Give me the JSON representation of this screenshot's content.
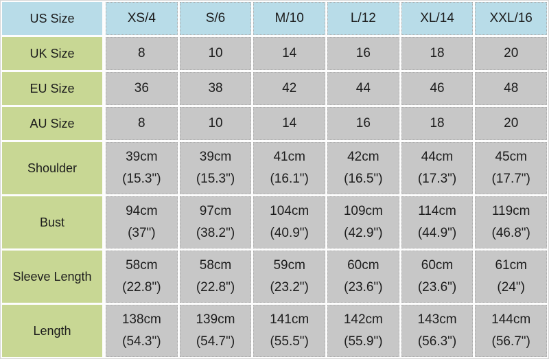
{
  "colors": {
    "header_bg": "#b8dce8",
    "label_bg": "#c8d794",
    "cell_bg": "#c7c7c7",
    "text": "#1c1c1c",
    "gap": "#ffffff"
  },
  "table": {
    "header": {
      "label": "US Size",
      "columns": [
        "XS/4",
        "S/6",
        "M/10",
        "L/12",
        "XL/14",
        "XXL/16"
      ]
    },
    "rows": [
      {
        "label": "UK Size",
        "cells": [
          "8",
          "10",
          "14",
          "16",
          "18",
          "20"
        ]
      },
      {
        "label": "EU Size",
        "cells": [
          "36",
          "38",
          "42",
          "44",
          "46",
          "48"
        ]
      },
      {
        "label": "AU Size",
        "cells": [
          "8",
          "10",
          "14",
          "16",
          "18",
          "20"
        ]
      },
      {
        "label": "Shoulder",
        "cells": [
          {
            "cm": "39cm",
            "in": "(15.3\")"
          },
          {
            "cm": "39cm",
            "in": "(15.3\")"
          },
          {
            "cm": "41cm",
            "in": "(16.1\")"
          },
          {
            "cm": "42cm",
            "in": "(16.5\")"
          },
          {
            "cm": "44cm",
            "in": "(17.3\")"
          },
          {
            "cm": "45cm",
            "in": "(17.7\")"
          }
        ]
      },
      {
        "label": "Bust",
        "cells": [
          {
            "cm": "94cm",
            "in": "(37\")"
          },
          {
            "cm": "97cm",
            "in": "(38.2\")"
          },
          {
            "cm": "104cm",
            "in": "(40.9\")"
          },
          {
            "cm": "109cm",
            "in": "(42.9\")"
          },
          {
            "cm": "114cm",
            "in": "(44.9\")"
          },
          {
            "cm": "119cm",
            "in": "(46.8\")"
          }
        ]
      },
      {
        "label": "Sleeve Length",
        "cells": [
          {
            "cm": "58cm",
            "in": "(22.8\")"
          },
          {
            "cm": "58cm",
            "in": "(22.8\")"
          },
          {
            "cm": "59cm",
            "in": "(23.2\")"
          },
          {
            "cm": "60cm",
            "in": "(23.6\")"
          },
          {
            "cm": "60cm",
            "in": "(23.6\")"
          },
          {
            "cm": "61cm",
            "in": "(24\")"
          }
        ]
      },
      {
        "label": "Length",
        "cells": [
          {
            "cm": "138cm",
            "in": "(54.3\")"
          },
          {
            "cm": "139cm",
            "in": "(54.7\")"
          },
          {
            "cm": "141cm",
            "in": "(55.5\")"
          },
          {
            "cm": "142cm",
            "in": "(55.9\")"
          },
          {
            "cm": "143cm",
            "in": "(56.3\")"
          },
          {
            "cm": "144cm",
            "in": "(56.7\")"
          }
        ]
      }
    ]
  },
  "chart_data": {
    "type": "table",
    "title": "Garment size conversion and measurement chart",
    "columns": [
      "US Size",
      "XS/4",
      "S/6",
      "M/10",
      "L/12",
      "XL/14",
      "XXL/16"
    ],
    "rows": [
      [
        "UK Size",
        "8",
        "10",
        "14",
        "16",
        "18",
        "20"
      ],
      [
        "EU Size",
        "36",
        "38",
        "42",
        "44",
        "46",
        "48"
      ],
      [
        "AU Size",
        "8",
        "10",
        "14",
        "16",
        "18",
        "20"
      ],
      [
        "Shoulder",
        "39cm (15.3\")",
        "39cm (15.3\")",
        "41cm (16.1\")",
        "42cm (16.5\")",
        "44cm (17.3\")",
        "45cm (17.7\")"
      ],
      [
        "Bust",
        "94cm (37\")",
        "97cm (38.2\")",
        "104cm (40.9\")",
        "109cm (42.9\")",
        "114cm (44.9\")",
        "119cm (46.8\")"
      ],
      [
        "Sleeve Length",
        "58cm (22.8\")",
        "58cm (22.8\")",
        "59cm (23.2\")",
        "60cm (23.6\")",
        "60cm (23.6\")",
        "61cm (24\")"
      ],
      [
        "Length",
        "138cm (54.3\")",
        "139cm (54.7\")",
        "141cm (55.5\")",
        "142cm (55.9\")",
        "143cm (56.3\")",
        "144cm (56.7\")"
      ]
    ]
  }
}
